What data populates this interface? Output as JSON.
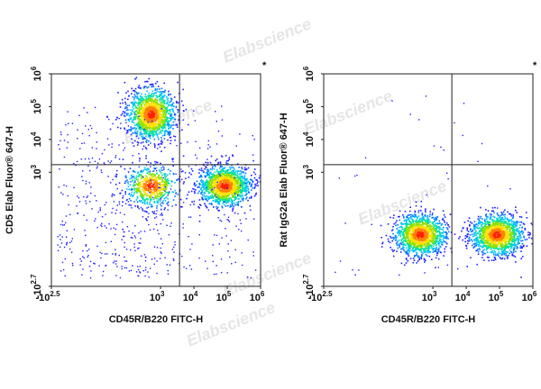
{
  "watermark": "Elabscience",
  "chart_data": [
    {
      "type": "scatter",
      "title": "",
      "xlabel": "CD45R/B220 FITC-H",
      "ylabel": "CD5 Elab Fluor® 647-H",
      "x_scale": "biexponential",
      "y_scale": "biexponential",
      "x_ticks": [
        "-10^2.5",
        "10^3",
        "10^4",
        "10^5",
        "10^6"
      ],
      "y_ticks": [
        "-10^2.7",
        "10^3",
        "10^4",
        "10^5",
        "10^6"
      ],
      "xlim": [
        -316,
        1000000
      ],
      "ylim": [
        -501,
        1000000
      ],
      "gate_lines": {
        "x": 3700,
        "y": 1700
      },
      "corner_mark": "*",
      "populations": [
        {
          "x": 500,
          "y": 60000,
          "density": "high"
        },
        {
          "x": 80000,
          "y": 400,
          "density": "high"
        },
        {
          "x": 500,
          "y": 400,
          "density": "medium"
        }
      ]
    },
    {
      "type": "scatter",
      "title": "",
      "xlabel": "CD45R/B220 FITC-H",
      "ylabel": "Rat IgG2a Elab Fluor® 647-H",
      "x_scale": "biexponential",
      "y_scale": "biexponential",
      "x_ticks": [
        "-10^2.5",
        "10^3",
        "10^4",
        "10^5",
        "10^6"
      ],
      "y_ticks": [
        "-10^2.7",
        "10^3",
        "10^4",
        "10^5",
        "10^6"
      ],
      "xlim": [
        -316,
        1000000
      ],
      "ylim": [
        -501,
        1000000
      ],
      "gate_lines": {
        "x": 3700,
        "y": 1700
      },
      "corner_mark": "*",
      "populations": [
        {
          "x": 400,
          "y": 0,
          "density": "high"
        },
        {
          "x": 80000,
          "y": 0,
          "density": "high"
        }
      ]
    }
  ]
}
